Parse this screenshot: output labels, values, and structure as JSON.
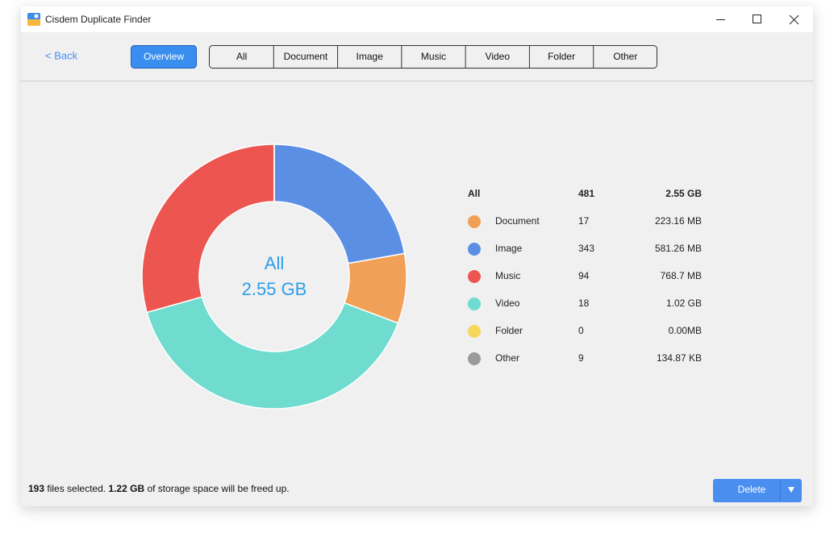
{
  "window": {
    "title": "Cisdem Duplicate Finder"
  },
  "toolbar": {
    "back": "< Back",
    "overview": "Overview",
    "tabs": [
      "All",
      "Document",
      "Image",
      "Music",
      "Video",
      "Folder",
      "Other"
    ]
  },
  "chart_data": {
    "type": "donut",
    "center_title": "All",
    "center_label": "2.55 GB",
    "values": [
      581.26,
      223.16,
      1044.48,
      768.7,
      0,
      0.1317
    ],
    "colors": [
      "#5b8fe4",
      "#f0a057",
      "#6fdccf",
      "#ed5650",
      "#f6d75c",
      "#9a9a9a"
    ]
  },
  "legend": {
    "header": {
      "name": "All",
      "count": "481",
      "size": "2.55 GB"
    },
    "rows": [
      {
        "name": "Document",
        "count": "17",
        "size": "223.16 MB",
        "color": "#f0a057"
      },
      {
        "name": "Image",
        "count": "343",
        "size": "581.26 MB",
        "color": "#5b8fe4"
      },
      {
        "name": "Music",
        "count": "94",
        "size": "768.7 MB",
        "color": "#ed5650"
      },
      {
        "name": "Video",
        "count": "18",
        "size": "1.02 GB",
        "color": "#6fdccf"
      },
      {
        "name": "Folder",
        "count": "0",
        "size": "0.00MB",
        "color": "#f6d75c"
      },
      {
        "name": "Other",
        "count": "9",
        "size": "134.87 KB",
        "color": "#9a9a9a"
      }
    ]
  },
  "status": {
    "count": "193",
    "text1": "files selected.",
    "size": "1.22 GB",
    "text2": "of storage space will be freed up."
  },
  "delete": "Delete"
}
